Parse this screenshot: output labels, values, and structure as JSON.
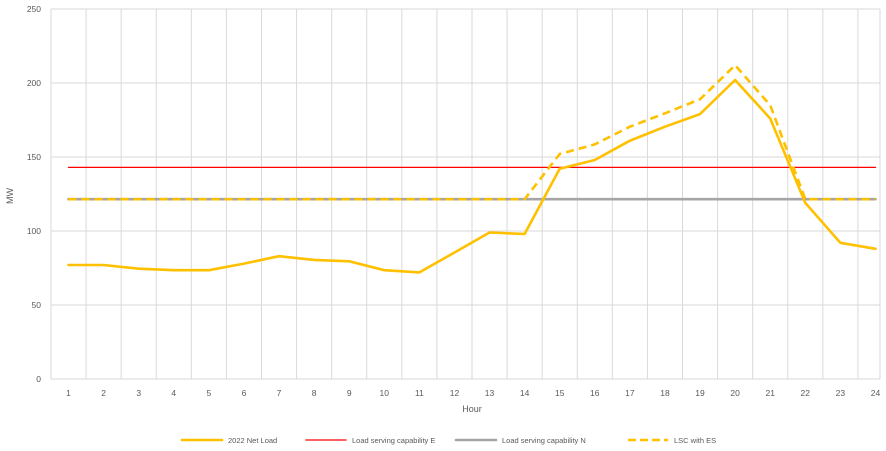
{
  "chart_data": {
    "type": "line",
    "xlabel": "Hour",
    "ylabel": "MW",
    "categories": [
      "1",
      "2",
      "3",
      "4",
      "5",
      "6",
      "7",
      "8",
      "9",
      "10",
      "11",
      "12",
      "13",
      "14",
      "15",
      "16",
      "17",
      "18",
      "19",
      "20",
      "21",
      "22",
      "23",
      "24"
    ],
    "ylim": [
      0,
      250
    ],
    "yticks": [
      0,
      50,
      100,
      150,
      200,
      250
    ],
    "grid": true,
    "legend_position": "bottom",
    "series": [
      {
        "name": "2022 Net Load",
        "color": "#FFC000",
        "style": "solid",
        "values": [
          77,
          77,
          74.5,
          73.5,
          73.5,
          78,
          83,
          80.5,
          79.5,
          73.5,
          72,
          85.5,
          99,
          98,
          142,
          148,
          161,
          170.5,
          179,
          202,
          176,
          119,
          92,
          88
        ]
      },
      {
        "name": "Load serving capability E",
        "color": "#FF0000",
        "style": "solid-thin",
        "values": [
          143,
          143,
          143,
          143,
          143,
          143,
          143,
          143,
          143,
          143,
          143,
          143,
          143,
          143,
          143,
          143,
          143,
          143,
          143,
          143,
          143,
          143,
          143,
          143
        ]
      },
      {
        "name": "Load serving capability N",
        "color": "#A5A5A5",
        "style": "solid",
        "values": [
          121.5,
          121.5,
          121.5,
          121.5,
          121.5,
          121.5,
          121.5,
          121.5,
          121.5,
          121.5,
          121.5,
          121.5,
          121.5,
          121.5,
          121.5,
          121.5,
          121.5,
          121.5,
          121.5,
          121.5,
          121.5,
          121.5,
          121.5,
          121.5
        ]
      },
      {
        "name": "LSC with ES",
        "color": "#FFC000",
        "style": "dashed",
        "values": [
          121.5,
          121.5,
          121.5,
          121.5,
          121.5,
          121.5,
          121.5,
          121.5,
          121.5,
          121.5,
          121.5,
          121.5,
          121.5,
          121.5,
          152,
          158.5,
          170.5,
          179.5,
          189,
          212,
          185,
          121.5,
          121.5,
          121.5
        ]
      }
    ]
  }
}
